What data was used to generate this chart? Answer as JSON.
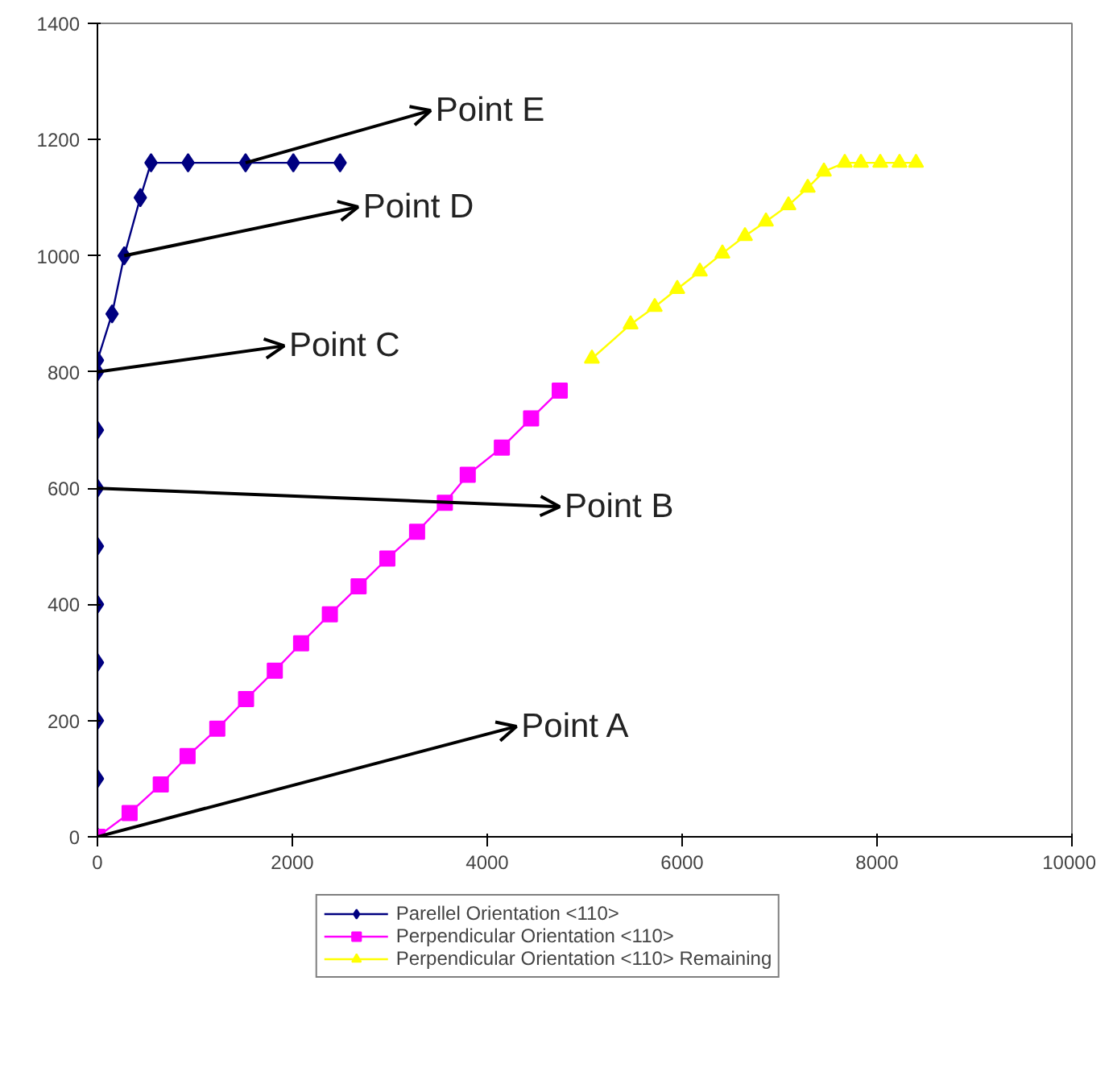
{
  "chart_data": {
    "type": "line",
    "xlim": [
      0,
      10000
    ],
    "xticks": [
      0,
      2000,
      4000,
      6000,
      8000,
      10000
    ],
    "ylim": [
      0,
      1400
    ],
    "yticks": [
      0,
      200,
      400,
      600,
      800,
      1000,
      1200,
      1400
    ],
    "grid": false,
    "legend": "bottom",
    "line_style": "solid",
    "series": [
      {
        "name": "Parellel Orientation <110>",
        "color": "#000080",
        "marker": "diamond",
        "x": [
          0,
          0,
          0,
          0,
          0,
          0,
          0,
          0,
          0,
          0,
          150,
          275,
          440,
          550,
          930,
          1520,
          2010,
          2490
        ],
        "values": [
          0,
          100,
          200,
          300,
          400,
          500,
          600,
          700,
          800,
          820,
          900,
          1000,
          1100,
          1160,
          1160,
          1160,
          1160,
          1160
        ]
      },
      {
        "name": "Perpendicular Orientation <110>",
        "color": "#ff00ff",
        "marker": "square",
        "x": [
          0,
          330,
          650,
          925,
          1230,
          1525,
          1820,
          2090,
          2385,
          2680,
          2975,
          3280,
          3565,
          3800,
          4150,
          4450,
          4744
        ],
        "values": [
          0,
          41,
          90,
          139,
          186,
          237,
          286,
          333,
          383,
          431,
          479,
          525,
          575,
          623,
          670,
          720,
          768
        ]
      },
      {
        "name": "Perpendicular Orientation <110> Remaining",
        "color": "#ffff00",
        "marker": "triangle",
        "x": [
          5074,
          5471,
          5719,
          5950,
          6182,
          6413,
          6645,
          6860,
          7091,
          7289,
          7455,
          7669,
          7835,
          8033,
          8231,
          8400
        ],
        "values": [
          823,
          882,
          912,
          943,
          973,
          1004,
          1034,
          1059,
          1087,
          1117,
          1145,
          1160,
          1160,
          1160,
          1160,
          1160
        ]
      }
    ],
    "annotations": [
      {
        "text": "Point A",
        "x": 0,
        "y": 0
      },
      {
        "text": "Point B",
        "x": 0,
        "y": 600
      },
      {
        "text": "Point C",
        "x": 0,
        "y": 800
      },
      {
        "text": "Point D",
        "x": 275,
        "y": 1000
      },
      {
        "text": "Point E",
        "x": 1520,
        "y": 1160
      }
    ]
  }
}
